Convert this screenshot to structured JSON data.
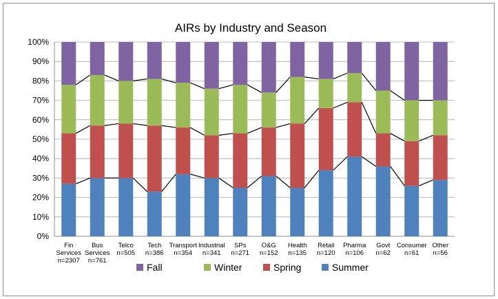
{
  "chart_data": {
    "type": "bar",
    "stacked": true,
    "percent_stacked": true,
    "title": "AIRs by Industry and Season",
    "xlabel": "",
    "ylabel": "",
    "ylim": [
      0,
      100
    ],
    "y_ticks": [
      "0%",
      "10%",
      "20%",
      "30%",
      "40%",
      "50%",
      "60%",
      "70%",
      "80%",
      "90%",
      "100%"
    ],
    "grid": true,
    "legend_position": "bottom",
    "categories": [
      {
        "line1": "Fin",
        "line2": "Services",
        "line3": "n=2307"
      },
      {
        "line1": "Bus",
        "line2": "Services",
        "line3": "n=761"
      },
      {
        "line1": "Telco",
        "line2": "n=505",
        "line3": ""
      },
      {
        "line1": "Tech",
        "line2": "n=386",
        "line3": ""
      },
      {
        "line1": "Transport",
        "line2": "n=354",
        "line3": ""
      },
      {
        "line1": "Industrial",
        "line2": "n=341",
        "line3": ""
      },
      {
        "line1": "SPs",
        "line2": "n=271",
        "line3": ""
      },
      {
        "line1": "O&G",
        "line2": "n=152",
        "line3": ""
      },
      {
        "line1": "Health",
        "line2": "n=135",
        "line3": ""
      },
      {
        "line1": "Retail",
        "line2": "n=120",
        "line3": ""
      },
      {
        "line1": "Pharma",
        "line2": "n=106",
        "line3": ""
      },
      {
        "line1": "Govt",
        "line2": "n=62",
        "line3": ""
      },
      {
        "line1": "Consumer",
        "line2": "n=61",
        "line3": ""
      },
      {
        "line1": "Other",
        "line2": "n=56",
        "line3": ""
      }
    ],
    "series": [
      {
        "name": "Summer",
        "color": "#4f81bd",
        "values": [
          27,
          30,
          30,
          23,
          32,
          30,
          25,
          31,
          25,
          34,
          41,
          36,
          26,
          29
        ]
      },
      {
        "name": "Spring",
        "color": "#c0504d",
        "values": [
          26,
          27,
          28,
          34,
          24,
          22,
          28,
          25,
          33,
          32,
          28,
          17,
          23,
          23
        ]
      },
      {
        "name": "Winter",
        "color": "#9bbb59",
        "values": [
          25,
          26,
          22,
          24,
          23,
          24,
          25,
          18,
          24,
          15,
          15,
          22,
          21,
          18
        ]
      },
      {
        "name": "Fall",
        "color": "#8064a2",
        "values": [
          22,
          17,
          20,
          19,
          21,
          24,
          22,
          26,
          18,
          19,
          16,
          25,
          30,
          30
        ]
      }
    ],
    "legend": [
      "Fall",
      "Winter",
      "Spring",
      "Summer"
    ]
  }
}
